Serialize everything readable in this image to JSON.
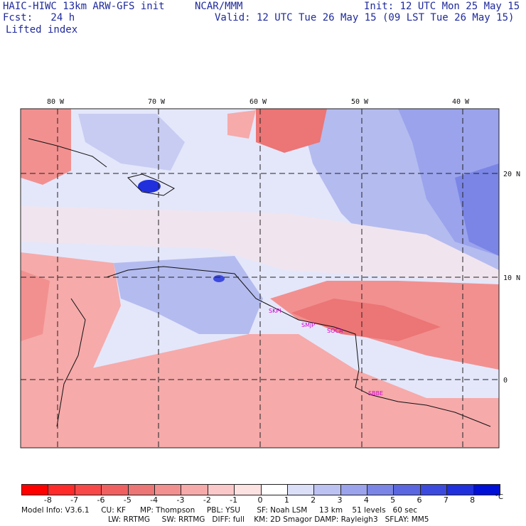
{
  "header": {
    "model_line": "HAIC-HIWC 13km ARW-GFS init",
    "org": "NCAR/MMM",
    "fcst": "Fcst:   24 h",
    "field": "Lifted index",
    "init": "Init: 12 UTC Mon 25 May 15",
    "valid": "Valid: 12 UTC Tue 26 May 15 (09 LST Tue 26 May 15)"
  },
  "map": {
    "lon_labels": [
      "80 W",
      "70 W",
      "60 W",
      "50 W",
      "40 W"
    ],
    "lat_labels": [
      "20 N",
      "10 N",
      "0"
    ],
    "cities": [
      "SKPI",
      "SMJP",
      "SOCA",
      "SBBE"
    ],
    "colors": {
      "strong_negative": "#ff1d1d",
      "negative": "#f08080",
      "weak_negative": "#f7c0c0",
      "neutral": "#eef0f8",
      "weak_positive": "#c8ccf2",
      "positive": "#8f98ea",
      "strong_positive": "#1f2be0"
    }
  },
  "colorbar": {
    "ticks": [
      "-8",
      "-7",
      "-6",
      "-5",
      "-4",
      "-3",
      "-2",
      "-1",
      "0",
      "1",
      "2",
      "3",
      "4",
      "5",
      "6",
      "7",
      "8"
    ],
    "unit": "°C",
    "colors": [
      "#ff0000",
      "#ff2a2a",
      "#f84848",
      "#f06060",
      "#ec7575",
      "#f29090",
      "#f6aaaa",
      "#fac8c8",
      "#fde2e2",
      "#ffffff",
      "#dcdff8",
      "#bcc2f2",
      "#9aa3ec",
      "#7a85e6",
      "#5a67e0",
      "#3d4ade",
      "#2030dc",
      "#0010d6"
    ]
  },
  "footer": {
    "line1": "Model Info: V3.6.1     CU: KF      MP: Thompson     PBL: YSU       SF: Noah LSM     13 km    51 levels   60 sec",
    "line2": "LW: RRTMG     SW: RRTMG   DIFF: full    KM: 2D Smagor DAMP: Rayleigh3   SFLAY: MM5"
  }
}
